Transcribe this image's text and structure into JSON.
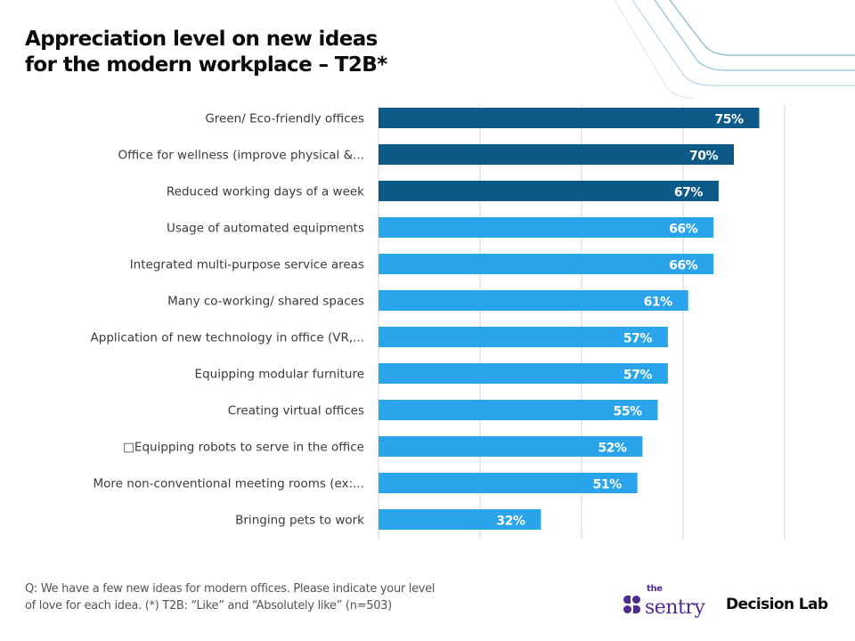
{
  "title": {
    "line1": "Appreciation level on new ideas",
    "line2": "for the modern workplace – T2B*"
  },
  "footnote": {
    "line1": "Q: We have a few new ideas for modern offices. Please indicate your level",
    "line2": "of love for each idea. (*) T2B: “Like” and “Absolutely like” (n=503)"
  },
  "logos": {
    "sentry_small": "the",
    "sentry_main": "sentry",
    "decision_lab": "Decision Lab"
  },
  "colors": {
    "highlight_bar": "#0d5a88",
    "regular_bar": "#2aa5ec",
    "gridline": "#e3e3e3",
    "brand_purple": "#4f2a8f"
  },
  "chart_data": {
    "type": "bar",
    "orientation": "horizontal",
    "title": "Appreciation level on new ideas for the modern workplace – T2B*",
    "xlabel": "",
    "ylabel": "",
    "xlim": [
      0,
      80
    ],
    "gridlines_at": [
      0,
      20,
      40,
      60,
      80
    ],
    "grid": true,
    "value_suffix": "%",
    "categories": [
      "Green/ Eco-friendly offices",
      "Office for wellness (improve physical &...",
      "Reduced working days of a week",
      "Usage of automated equipments",
      "Integrated multi-purpose service areas",
      "Many co-working/ shared spaces",
      "Application of new technology in office (VR,...",
      "Equipping modular furniture",
      "Creating virtual offices",
      "□Equipping robots to serve in the office",
      "More non-conventional meeting rooms (ex:...",
      "Bringing pets to work"
    ],
    "values": [
      75,
      70,
      67,
      66,
      66,
      61,
      57,
      57,
      55,
      52,
      51,
      32
    ],
    "highlighted": [
      true,
      true,
      true,
      false,
      false,
      false,
      false,
      false,
      false,
      false,
      false,
      false
    ],
    "legend": "none"
  }
}
